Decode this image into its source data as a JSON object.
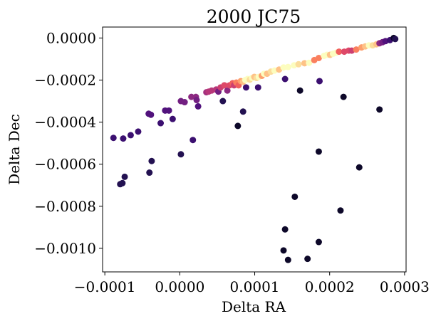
{
  "chart_data": {
    "type": "scatter",
    "title": "2000 JC75",
    "xlabel": "Delta RA",
    "ylabel": "Delta Dec",
    "xlim": [
      -0.000103,
      0.000302
    ],
    "ylim": [
      -0.001112,
      5.2e-05
    ],
    "grid": false,
    "legend": "none",
    "x_ticks": [
      {
        "value": -0.0001,
        "label": "−0.0001"
      },
      {
        "value": 0.0,
        "label": "0.0000"
      },
      {
        "value": 0.0001,
        "label": "0.0001"
      },
      {
        "value": 0.0002,
        "label": "0.0002"
      },
      {
        "value": 0.0003,
        "label": "0.0003"
      }
    ],
    "y_ticks": [
      {
        "value": 0.0,
        "label": "0.0000"
      },
      {
        "value": -0.0002,
        "label": "−0.0002"
      },
      {
        "value": -0.0004,
        "label": "−0.0004"
      },
      {
        "value": -0.0006,
        "label": "−0.0006"
      },
      {
        "value": -0.0008,
        "label": "−0.0008"
      },
      {
        "value": -0.001,
        "label": "−0.0010"
      }
    ],
    "colormap": "magma",
    "points": [
      {
        "x": -8.85e-05,
        "y": -0.000475,
        "c": "#3b0f70"
      },
      {
        "x": -7.55e-05,
        "y": -0.000478,
        "c": "#3b0f70"
      },
      {
        "x": -6.55e-05,
        "y": -0.000462,
        "c": "#3b0f70"
      },
      {
        "x": -5.55e-05,
        "y": -0.000445,
        "c": "#3b0f70"
      },
      {
        "x": -4.15e-05,
        "y": -0.00036,
        "c": "#51127c"
      },
      {
        "x": -3.85e-05,
        "y": -0.000365,
        "c": "#51127c"
      },
      {
        "x": -2.55e-05,
        "y": -0.000405,
        "c": "#3b0f70"
      },
      {
        "x": -9.5e-06,
        "y": -0.000385,
        "c": "#3b0f70"
      },
      {
        "x": -1.95e-05,
        "y": -0.000345,
        "c": "#51127c"
      },
      {
        "x": -1.45e-05,
        "y": -0.000345,
        "c": "#51127c"
      },
      {
        "x": 1.5e-06,
        "y": -0.0003,
        "c": "#721f81"
      },
      {
        "x": 6.5e-06,
        "y": -0.000305,
        "c": "#721f81"
      },
      {
        "x": 1.55e-05,
        "y": -0.00028,
        "c": "#8c2981"
      },
      {
        "x": 2.15e-05,
        "y": -0.00028,
        "c": "#8c2981"
      },
      {
        "x": 2.25e-05,
        "y": -0.000295,
        "c": "#721f81"
      },
      {
        "x": 2.45e-05,
        "y": -0.000325,
        "c": "#51127c"
      },
      {
        "x": 1.75e-05,
        "y": -0.000485,
        "c": "#3b0f70"
      },
      {
        "x": 1.5e-06,
        "y": -0.000553,
        "c": "#231151"
      },
      {
        "x": -3.75e-05,
        "y": -0.000585,
        "c": "#231151"
      },
      {
        "x": -4.05e-05,
        "y": -0.00064,
        "c": "#231151"
      },
      {
        "x": -7.35e-05,
        "y": -0.00066,
        "c": "#231151"
      },
      {
        "x": -7.65e-05,
        "y": -0.00069,
        "c": "#231151"
      },
      {
        "x": -7.95e-05,
        "y": -0.000695,
        "c": "#231151"
      },
      {
        "x": 3.55e-05,
        "y": -0.000258,
        "c": "#a3307e"
      },
      {
        "x": 3.85e-05,
        "y": -0.000255,
        "c": "#b73779"
      },
      {
        "x": 4.25e-05,
        "y": -0.00025,
        "c": "#b73779"
      },
      {
        "x": 4.85e-05,
        "y": -0.000245,
        "c": "#b73779"
      },
      {
        "x": 5.15e-05,
        "y": -0.000255,
        "c": "#721f81"
      },
      {
        "x": 5.45e-05,
        "y": -0.000235,
        "c": "#cc3f71"
      },
      {
        "x": 5.95e-05,
        "y": -0.000225,
        "c": "#de4968"
      },
      {
        "x": 6.35e-05,
        "y": -0.00025,
        "c": "#8c2981"
      },
      {
        "x": 6.65e-05,
        "y": -0.000225,
        "c": "#de4968"
      },
      {
        "x": 7.05e-05,
        "y": -0.000215,
        "c": "#f1605d"
      },
      {
        "x": 7.25e-05,
        "y": -0.000225,
        "c": "#cc3f71"
      },
      {
        "x": 7.55e-05,
        "y": -0.000212,
        "c": "#fa7f5e"
      },
      {
        "x": 7.85e-05,
        "y": -0.000225,
        "c": "#f1605d"
      },
      {
        "x": 8.15e-05,
        "y": -0.000205,
        "c": "#fd9f6c"
      },
      {
        "x": 8.45e-05,
        "y": -0.000208,
        "c": "#fec287"
      },
      {
        "x": 8.75e-05,
        "y": -0.0002,
        "c": "#fcfdbf"
      },
      {
        "x": 9.05e-05,
        "y": -0.000195,
        "c": "#fcfdbf"
      },
      {
        "x": 9.35e-05,
        "y": -0.000198,
        "c": "#fbdd9c"
      },
      {
        "x": 9.65e-05,
        "y": -0.00019,
        "c": "#fcfdbf"
      },
      {
        "x": 9.95e-05,
        "y": -0.000185,
        "c": "#fec287"
      },
      {
        "x": 0.0001025,
        "y": -0.00019,
        "c": "#fbdd9c"
      },
      {
        "x": 0.0001055,
        "y": -0.000185,
        "c": "#fcfdbf"
      },
      {
        "x": 0.0001095,
        "y": -0.00018,
        "c": "#fd9f6c"
      },
      {
        "x": 0.0001125,
        "y": -0.00017,
        "c": "#fcfdbf"
      },
      {
        "x": 0.0001165,
        "y": -0.00017,
        "c": "#fec287"
      },
      {
        "x": 0.0001215,
        "y": -0.00016,
        "c": "#fbdd9c"
      },
      {
        "x": 0.0001265,
        "y": -0.000155,
        "c": "#fcfdbf"
      },
      {
        "x": 0.0001325,
        "y": -0.00015,
        "c": "#fec287"
      },
      {
        "x": 0.0001385,
        "y": -0.00014,
        "c": "#fcfdbf"
      },
      {
        "x": 0.0001445,
        "y": -0.000138,
        "c": "#fcfdbf"
      },
      {
        "x": 0.0001525,
        "y": -0.00013,
        "c": "#fcfdbf"
      },
      {
        "x": 0.0001585,
        "y": -0.000125,
        "c": "#fbdd9c"
      },
      {
        "x": 0.0001665,
        "y": -0.00012,
        "c": "#fec287"
      },
      {
        "x": 0.0001725,
        "y": -0.000118,
        "c": "#fcfdbf"
      },
      {
        "x": 0.0001795,
        "y": -0.000105,
        "c": "#fa7f5e"
      },
      {
        "x": 0.0001855,
        "y": -9.5e-05,
        "c": "#fa7f5e"
      },
      {
        "x": 0.0001925,
        "y": -8.5e-05,
        "c": "#fcfdbf"
      },
      {
        "x": 0.0001965,
        "y": -8e-05,
        "c": "#fcfdbf"
      },
      {
        "x": 0.0002005,
        "y": -8e-05,
        "c": "#fec287"
      },
      {
        "x": 0.0002045,
        "y": -7.5e-05,
        "c": "#fcfdbf"
      },
      {
        "x": 0.0002085,
        "y": -7e-05,
        "c": "#fcfdbf"
      },
      {
        "x": 0.0002125,
        "y": -6.5e-05,
        "c": "#f1605d"
      },
      {
        "x": 0.0002195,
        "y": -6.5e-05,
        "c": "#de4968"
      },
      {
        "x": 0.0002255,
        "y": -6e-05,
        "c": "#de4968"
      },
      {
        "x": 0.0002295,
        "y": -6e-05,
        "c": "#cc3f71"
      },
      {
        "x": 0.0002355,
        "y": -5.5e-05,
        "c": "#fa7f5e"
      },
      {
        "x": 0.0002425,
        "y": -4.5e-05,
        "c": "#fd9f6c"
      },
      {
        "x": 0.0002475,
        "y": -4e-05,
        "c": "#fec287"
      },
      {
        "x": 0.0002525,
        "y": -3.5e-05,
        "c": "#fcfdbf"
      },
      {
        "x": 0.0002575,
        "y": -3.5e-05,
        "c": "#fbdd9c"
      },
      {
        "x": 0.0002625,
        "y": -3e-05,
        "c": "#fec287"
      },
      {
        "x": 0.0002665,
        "y": -2.5e-05,
        "c": "#8c2981"
      },
      {
        "x": 0.0002705,
        "y": -2e-05,
        "c": "#721f81"
      },
      {
        "x": 0.0002745,
        "y": -1.5e-05,
        "c": "#51127c"
      },
      {
        "x": 0.0002805,
        "y": -1e-05,
        "c": "#3b0f70"
      },
      {
        "x": 0.0002855,
        "y": 0.0,
        "c": "#0d0829"
      },
      {
        "x": 0.0002875,
        "y": -5e-06,
        "c": "#231151"
      },
      {
        "x": 8.85e-05,
        "y": -0.000235,
        "c": "#3b0f70"
      },
      {
        "x": 0.0001045,
        "y": -0.000235,
        "c": "#3b0f70"
      },
      {
        "x": 0.0001405,
        "y": -0.000195,
        "c": "#3b0f70"
      },
      {
        "x": 0.0001865,
        "y": -0.000205,
        "c": "#3b0f70"
      },
      {
        "x": 5.75e-05,
        "y": -0.0003,
        "c": "#231151"
      },
      {
        "x": 8.45e-05,
        "y": -0.00035,
        "c": "#231151"
      },
      {
        "x": 7.75e-05,
        "y": -0.000418,
        "c": "#0d0829"
      },
      {
        "x": 0.0001605,
        "y": -0.00025,
        "c": "#0d0829"
      },
      {
        "x": 0.0002185,
        "y": -0.00028,
        "c": "#0d0829"
      },
      {
        "x": 0.0002665,
        "y": -0.00034,
        "c": "#0d0829"
      },
      {
        "x": 0.0001855,
        "y": -0.00054,
        "c": "#0d0829"
      },
      {
        "x": 0.0002395,
        "y": -0.000615,
        "c": "#0d0829"
      },
      {
        "x": 0.0001535,
        "y": -0.000755,
        "c": "#0d0829"
      },
      {
        "x": 0.0002145,
        "y": -0.00082,
        "c": "#0d0829"
      },
      {
        "x": 0.0001405,
        "y": -0.00091,
        "c": "#0d0829"
      },
      {
        "x": 0.0001855,
        "y": -0.00097,
        "c": "#0d0829"
      },
      {
        "x": 0.0001385,
        "y": -0.00101,
        "c": "#0d0829"
      },
      {
        "x": 0.0001445,
        "y": -0.001055,
        "c": "#0d0829"
      },
      {
        "x": 0.0001705,
        "y": -0.00105,
        "c": "#0d0829"
      }
    ]
  }
}
